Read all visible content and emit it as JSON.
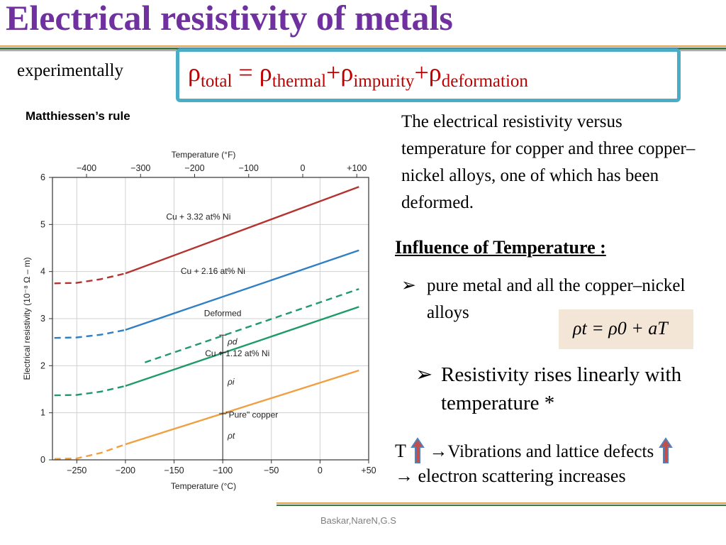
{
  "slide": {
    "title": "Electrical resistivity of metals",
    "experimentally": "experimentally",
    "rule_name": "Matthiessen’s rule",
    "formula": {
      "rho": "ρ",
      "eq": " = ",
      "plus": "+",
      "sub_total": "total",
      "sub_thermal": "thermal",
      "sub_impurity": "impurity",
      "sub_deformation": "deformation"
    },
    "description": "The electrical resistivity versus temperature for copper and three copper–nickel alloys, one of which has been deformed.",
    "influence_heading": "Influence of Temperature :",
    "bullet_marker": "➢",
    "bullet1": "pure metal and all the copper–nickel alloys",
    "linear_eq": "ρt = ρ0 + aT",
    "bullet2": "Resistivity rises linearly with temperature *",
    "t_prefix": "T",
    "arrow_right": "→",
    "vibrations_text": "Vibrations and lattice defects",
    "scattering_text": "electron scattering increases",
    "footer": "Baskar,NareN,G.S",
    "colors": {
      "title": "#7030a0",
      "formula": "#c00000",
      "box_border": "#4bacc6",
      "eq_box_bg": "#f4e6d6",
      "up_arrow_fill": "#c0504d",
      "up_arrow_stroke": "#4f81bd"
    }
  },
  "chart_data": {
    "type": "line",
    "xlabel": "Temperature (°C)",
    "x2label": "Temperature (°F)",
    "ylabel": "Electrical resistivity (10⁻⁸ Ω – m)",
    "xlim": [
      -275,
      50
    ],
    "ylim": [
      0,
      6
    ],
    "x_ticks": [
      -250,
      -200,
      -150,
      -100,
      -50,
      0,
      50
    ],
    "x_tick_labels": [
      "−250",
      "−200",
      "−150",
      "−100",
      "−50",
      "0",
      "+50"
    ],
    "x2_ticks_f": [
      -400,
      -300,
      -200,
      -100,
      0,
      100
    ],
    "x2_tick_labels": [
      "−400",
      "−300",
      "−200",
      "−100",
      "0",
      "+100"
    ],
    "y_ticks": [
      0,
      1,
      2,
      3,
      4,
      5,
      6
    ],
    "y_tick_labels": [
      "0",
      "1",
      "2",
      "3",
      "4",
      "5",
      "6"
    ],
    "grid": true,
    "series": [
      {
        "name": "Cu + 3.32 at% Ni",
        "color": "#b5332f",
        "dashed": [
          [
            -273,
            3.75
          ],
          [
            -250,
            3.76
          ],
          [
            -225,
            3.84
          ],
          [
            -200,
            3.96
          ]
        ],
        "solid": [
          [
            -200,
            3.96
          ],
          [
            40,
            5.8
          ]
        ],
        "label_at": [
          -125,
          5.1
        ]
      },
      {
        "name": "Cu + 2.16 at% Ni",
        "color": "#2f7fc4",
        "dashed": [
          [
            -273,
            2.59
          ],
          [
            -250,
            2.6
          ],
          [
            -225,
            2.66
          ],
          [
            -200,
            2.76
          ]
        ],
        "solid": [
          [
            -200,
            2.76
          ],
          [
            40,
            4.45
          ]
        ],
        "label_at": [
          -110,
          3.95
        ]
      },
      {
        "name": "Deformed",
        "color": "#1f9a6a",
        "dashed": [
          [
            -180,
            2.07
          ],
          [
            40,
            3.63
          ]
        ],
        "solid": [],
        "label_at": [
          -100,
          3.05
        ]
      },
      {
        "name": "Cu + 1.12 at% Ni",
        "color": "#1f9a6a",
        "dashed": [
          [
            -273,
            1.37
          ],
          [
            -250,
            1.38
          ],
          [
            -225,
            1.45
          ],
          [
            -200,
            1.57
          ]
        ],
        "solid": [
          [
            -200,
            1.57
          ],
          [
            40,
            3.25
          ]
        ],
        "label_at": [
          -85,
          2.2
        ]
      },
      {
        "name": "\"Pure\" copper",
        "color": "#f0a040",
        "dashed": [
          [
            -273,
            0.02
          ],
          [
            -250,
            0.03
          ],
          [
            -225,
            0.15
          ],
          [
            -200,
            0.33
          ]
        ],
        "solid": [
          [
            -200,
            0.33
          ],
          [
            40,
            1.9
          ]
        ],
        "label_at": [
          -70,
          0.9
        ]
      }
    ],
    "annotations": [
      {
        "text": "ρd",
        "x": -95,
        "y": 2.45
      },
      {
        "text": "ρi",
        "x": -95,
        "y": 1.6
      },
      {
        "text": "ρt",
        "x": -95,
        "y": 0.45
      }
    ]
  }
}
